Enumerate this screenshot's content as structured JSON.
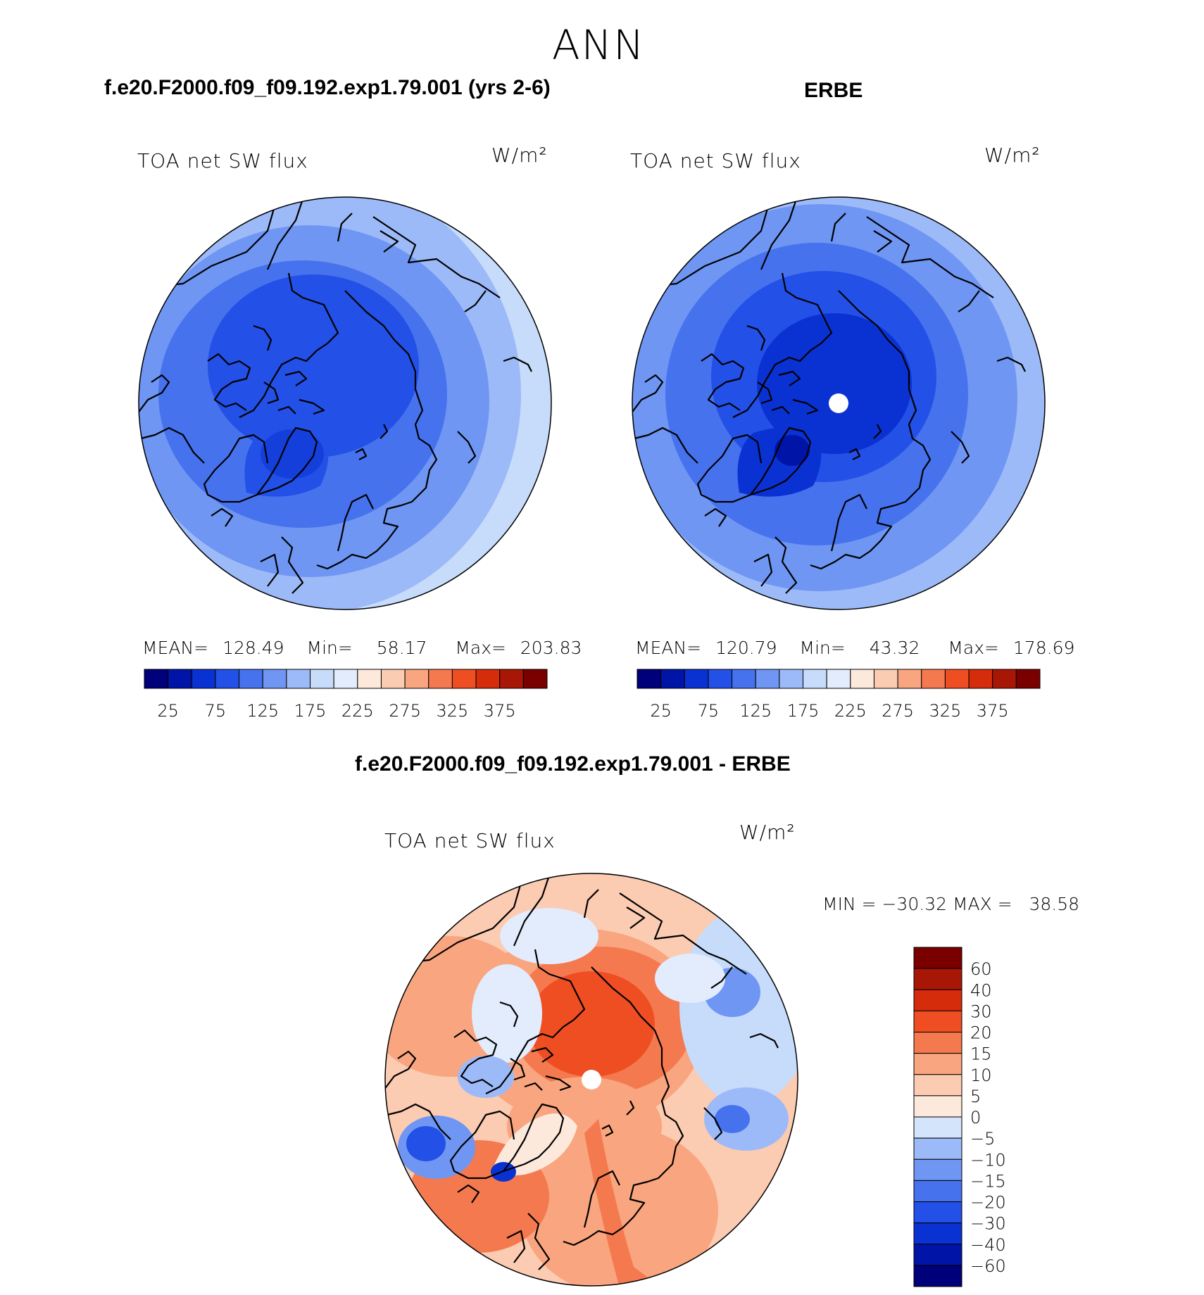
{
  "title": "ANN",
  "colors": {
    "abs_scale": [
      "#00007a",
      "#0014a8",
      "#0a32d2",
      "#2350e6",
      "#4672ee",
      "#6f96f3",
      "#9dbaf8",
      "#c7dcfb",
      "#e2ecfc",
      "#fde9dc",
      "#fbcbb2",
      "#f9a57f",
      "#f5794f",
      "#ee4e22",
      "#d52c0c",
      "#a81705",
      "#7a0000"
    ],
    "diff_scale": [
      "#00007a",
      "#0014a8",
      "#0a32d2",
      "#2350e6",
      "#4672ee",
      "#6f96f3",
      "#9dbaf8",
      "#d4e4fb",
      "#fde9dc",
      "#fbcbb2",
      "#f9a57f",
      "#f5794f",
      "#ee4e22",
      "#d52c0c",
      "#a81705",
      "#7a0000"
    ]
  },
  "chart_data": [
    {
      "type": "heatmap",
      "panel": "model",
      "title": "f.e20.F2000.f09_f09.192.exp1.79.001 (yrs 2-6)",
      "variable": "TOA net SW flux",
      "units": "W/m²",
      "mean_label": "MEAN=",
      "mean": "128.49",
      "min_label": "Min=",
      "min": "58.17",
      "max_label": "Max=",
      "max": "203.83",
      "levels": [
        25,
        50,
        75,
        100,
        125,
        150,
        175,
        200,
        225,
        250,
        275,
        300,
        325,
        350,
        375
      ],
      "tick_labels": [
        "25",
        "75",
        "125",
        "175",
        "225",
        "275",
        "325",
        "375"
      ],
      "projection": "north polar stereographic"
    },
    {
      "type": "heatmap",
      "panel": "observations",
      "title": "ERBE",
      "variable": "TOA net SW flux",
      "units": "W/m²",
      "mean_label": "MEAN=",
      "mean": "120.79",
      "min_label": "Min=",
      "min": "43.32",
      "max_label": "Max=",
      "max": "178.69",
      "levels": [
        25,
        50,
        75,
        100,
        125,
        150,
        175,
        200,
        225,
        250,
        275,
        300,
        325,
        350,
        375
      ],
      "tick_labels": [
        "25",
        "75",
        "125",
        "175",
        "225",
        "275",
        "325",
        "375"
      ],
      "projection": "north polar stereographic"
    },
    {
      "type": "heatmap",
      "panel": "difference",
      "title": "f.e20.F2000.f09_f09.192.exp1.79.001 - ERBE",
      "variable": "TOA net SW flux",
      "units": "W/m²",
      "minmax_label": "MIN = −30.32 MAX =   38.58",
      "min": -30.32,
      "max": 38.58,
      "levels": [
        "60",
        "40",
        "30",
        "20",
        "15",
        "10",
        "5",
        "0",
        "−5",
        "−10",
        "−15",
        "−20",
        "−30",
        "−40",
        "−60"
      ],
      "projection": "north polar stereographic"
    }
  ]
}
